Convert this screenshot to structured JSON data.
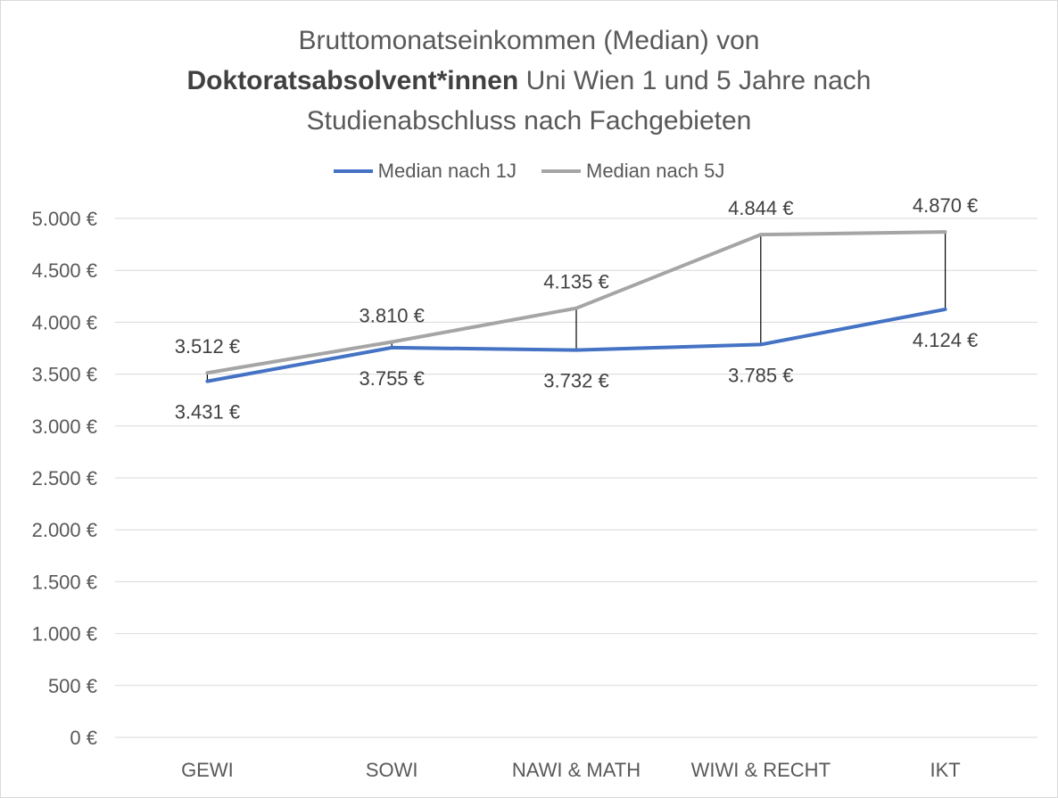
{
  "chart_data": {
    "type": "line",
    "title_part1": "Bruttomonatseinkommen (Median) von",
    "title_bold": "Doktoratsabsolvent*innen",
    "title_part2": " Uni Wien 1 und 5 Jahre nach",
    "title_part3": "Studienabschluss nach Fachgebieten",
    "categories": [
      "GEWI",
      "SOWI",
      "NAWI & MATH",
      "WIWI & RECHT",
      "IKT"
    ],
    "series": [
      {
        "name": "Median nach 1J",
        "color": "#4472c4",
        "values": [
          3431,
          3755,
          3732,
          3785,
          4124
        ],
        "labels": [
          "3.431 €",
          "3.755 €",
          "3.732 €",
          "3.785 €",
          "4.124 €"
        ]
      },
      {
        "name": "Median nach 5J",
        "color": "#a5a5a5",
        "values": [
          3512,
          3810,
          4135,
          4844,
          4870
        ],
        "labels": [
          "3.512 €",
          "3.810 €",
          "4.135 €",
          "4.844 €",
          "4.870 €"
        ]
      }
    ],
    "ylim": [
      0,
      5000
    ],
    "yticks": [
      0,
      500,
      1000,
      1500,
      2000,
      2500,
      3000,
      3500,
      4000,
      4500,
      5000
    ],
    "ytick_labels": [
      "0 €",
      "500 €",
      "1.000 €",
      "1.500 €",
      "2.000 €",
      "2.500 €",
      "3.000 €",
      "3.500 €",
      "4.000 €",
      "4.500 €",
      "5.000 €"
    ],
    "grid": true,
    "high_low_lines": true,
    "legend_position": "top",
    "gridline_color": "#d9d9d9",
    "high_low_color": "#000000"
  }
}
